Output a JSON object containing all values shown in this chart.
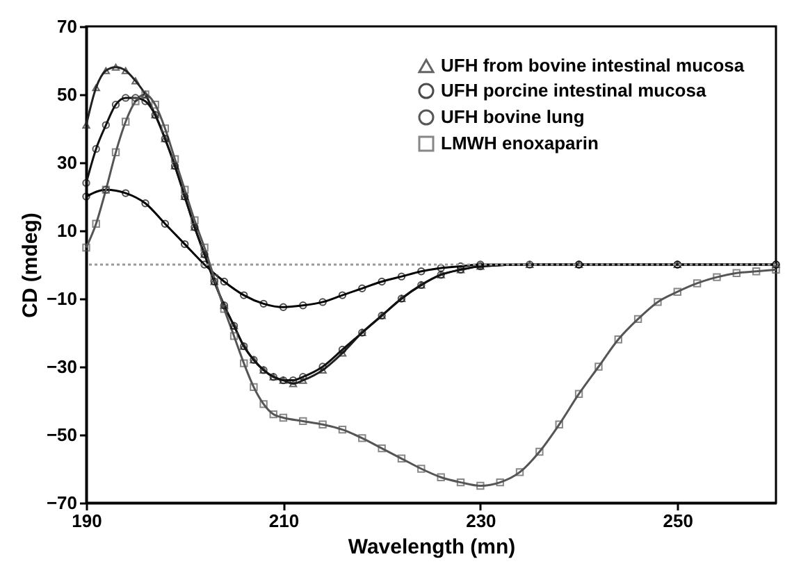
{
  "chart_data": {
    "type": "line",
    "xlabel": "Wavelength (mn)",
    "ylabel": "CD (mdeg)",
    "xlim": [
      190,
      260
    ],
    "xticks": [
      190,
      210,
      230,
      250
    ],
    "ylim": [
      -70,
      70
    ],
    "yticks": [
      -70,
      -50,
      -30,
      -10,
      10,
      30,
      50,
      70
    ],
    "grid": false,
    "legend": "top right",
    "ref_lines": [
      {
        "axis": "y",
        "value": 0,
        "color": "#999999",
        "line_style": "dotted"
      }
    ],
    "series": [
      {
        "name": "UFH from bovine intestinal mucosa",
        "color": "#222222",
        "marker": "triangle",
        "x": [
          190,
          191,
          192,
          193,
          194,
          195,
          196,
          197,
          198,
          199,
          200,
          201,
          202,
          203,
          204,
          205,
          206,
          207,
          208,
          209,
          210,
          211,
          212,
          214,
          216,
          218,
          220,
          222,
          224,
          226,
          228,
          230,
          235,
          240,
          250,
          260
        ],
        "values": [
          41,
          52,
          57,
          58,
          57,
          54,
          50,
          44,
          37,
          29,
          20,
          11,
          3,
          -5,
          -12,
          -18,
          -24,
          -28,
          -31,
          -33,
          -34,
          -35,
          -34,
          -31,
          -26,
          -20,
          -15,
          -10,
          -6,
          -3,
          -1.5,
          -0.5,
          0,
          0,
          0,
          0
        ]
      },
      {
        "name": "UFH porcine intestinal mucosa",
        "color": "#000000",
        "marker": "circle",
        "x": [
          190,
          192,
          194,
          196,
          198,
          200,
          202,
          204,
          206,
          208,
          210,
          212,
          214,
          216,
          218,
          220,
          222,
          224,
          226,
          228,
          230,
          240,
          250,
          260
        ],
        "values": [
          20,
          22,
          21,
          18,
          12,
          6,
          0,
          -5,
          -9,
          -11.5,
          -12.5,
          -12,
          -11,
          -9,
          -7,
          -5,
          -3.5,
          -2,
          -1,
          -0.5,
          0,
          0,
          0,
          0
        ]
      },
      {
        "name": "UFH bovine lung",
        "color": "#111111",
        "marker": "circle",
        "x": [
          190,
          191,
          192,
          193,
          194,
          195,
          196,
          197,
          198,
          199,
          200,
          201,
          202,
          203,
          204,
          205,
          206,
          207,
          208,
          209,
          210,
          211,
          212,
          214,
          216,
          218,
          220,
          222,
          224,
          226,
          228,
          230,
          235,
          240,
          250,
          260
        ],
        "values": [
          24,
          34,
          41,
          47,
          49,
          49,
          48,
          44,
          37,
          29,
          20,
          11,
          3,
          -5,
          -12,
          -18,
          -24,
          -28,
          -31,
          -33,
          -34,
          -34,
          -33,
          -30,
          -25,
          -20,
          -15,
          -10,
          -6,
          -3,
          -1.5,
          -0.5,
          0,
          0,
          0,
          0
        ]
      },
      {
        "name": "LMWH enoxaparin",
        "color": "#555555",
        "marker": "square",
        "x": [
          190,
          191,
          192,
          193,
          194,
          195,
          196,
          197,
          198,
          199,
          200,
          201,
          202,
          203,
          204,
          205,
          206,
          207,
          208,
          209,
          210,
          212,
          214,
          216,
          218,
          220,
          222,
          224,
          226,
          228,
          230,
          232,
          234,
          236,
          238,
          240,
          242,
          244,
          246,
          248,
          250,
          252,
          254,
          256,
          258,
          260
        ],
        "values": [
          5,
          12,
          22,
          33,
          42,
          48,
          50,
          47,
          40,
          31,
          22,
          13,
          5,
          -4,
          -13,
          -21,
          -29,
          -36,
          -41,
          -44,
          -45,
          -46,
          -47,
          -48.5,
          -51,
          -54,
          -57,
          -60,
          -62.5,
          -64,
          -65,
          -64,
          -61,
          -55,
          -47,
          -38,
          -30,
          -22,
          -16,
          -11,
          -8,
          -5.5,
          -3.7,
          -2.5,
          -2,
          -1.5
        ]
      }
    ]
  }
}
